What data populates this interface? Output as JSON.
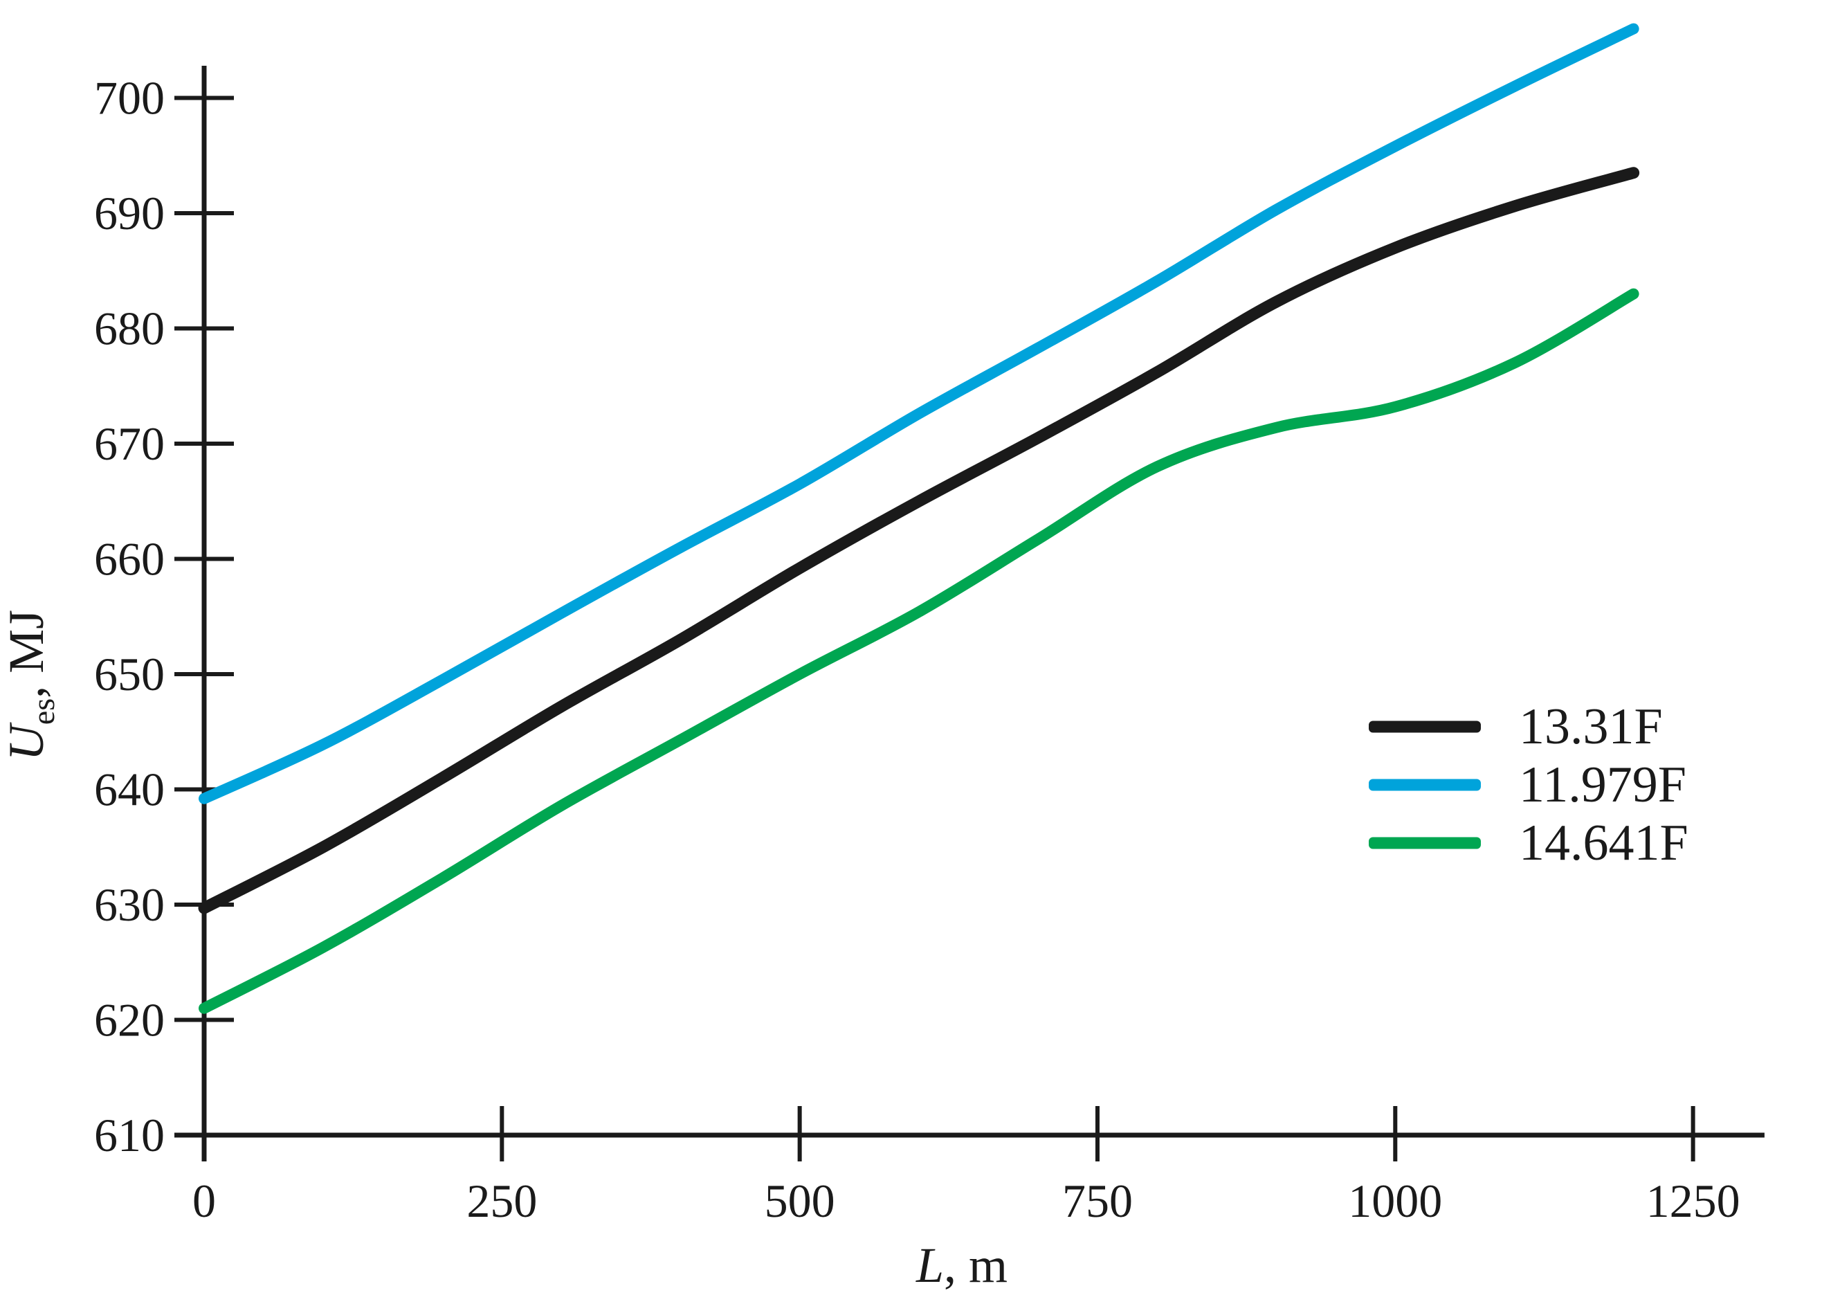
{
  "figure": {
    "background_color": "#ffffff",
    "axis_color": "#1a1a1a"
  },
  "chart_data": {
    "type": "line",
    "title": "",
    "xlabel_main": "L",
    "xlabel_rest": ", m",
    "ylabel_main": "U",
    "ylabel_sub": "es",
    "ylabel_rest": ", MJ",
    "x": [
      0,
      100,
      200,
      300,
      400,
      500,
      600,
      700,
      800,
      900,
      1000,
      1100,
      1200
    ],
    "series": [
      {
        "name": "13.31F",
        "color": "#1a1a1a",
        "stroke_width": 17,
        "values": [
          629.7,
          635.0,
          641.0,
          647.2,
          653.0,
          659.2,
          665.0,
          670.5,
          676.2,
          682.3,
          687.0,
          690.6,
          693.5
        ]
      },
      {
        "name": "11.979F",
        "color": "#00a3db",
        "stroke_width": 16,
        "values": [
          639.2,
          643.9,
          649.5,
          655.3,
          661.0,
          666.5,
          672.6,
          678.3,
          684.1,
          690.3,
          695.8,
          701.0,
          706.0
        ]
      },
      {
        "name": "14.641F",
        "color": "#00a651",
        "stroke_width": 16,
        "values": [
          621.0,
          626.3,
          632.3,
          638.6,
          644.3,
          650.0,
          655.4,
          661.7,
          668.0,
          671.4,
          673.2,
          677.0,
          683.0
        ]
      }
    ],
    "x_ticks": [
      0,
      250,
      500,
      750,
      1000,
      1250
    ],
    "y_ticks": [
      610,
      620,
      630,
      640,
      650,
      660,
      670,
      680,
      690,
      700
    ],
    "xlim": [
      0,
      1310
    ],
    "ylim": [
      610,
      703
    ],
    "grid": false,
    "legend_position": "right-middle",
    "legend": [
      "13.31F",
      "11.979F",
      "14.641F"
    ]
  }
}
